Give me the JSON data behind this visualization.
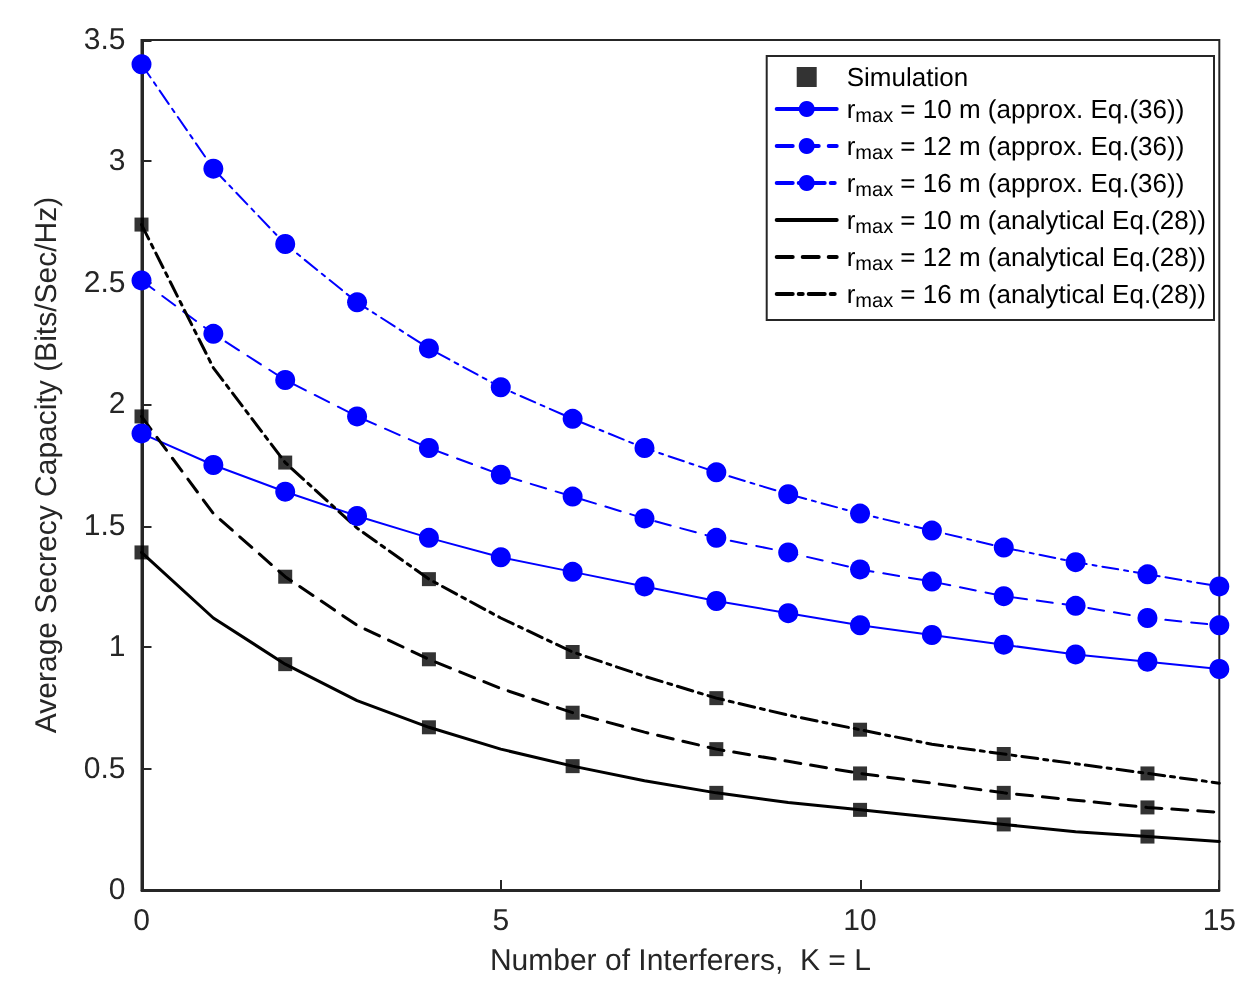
{
  "chart_data": {
    "type": "line",
    "xlabel": "Number of Interferers,  K = L",
    "ylabel": "Average Secrecy Capacity (Bits/Sec/Hz)",
    "x": [
      0,
      1,
      2,
      3,
      4,
      5,
      6,
      7,
      8,
      9,
      10,
      11,
      12,
      13,
      14,
      15
    ],
    "xlim": [
      0,
      15
    ],
    "xticks": [
      0,
      5,
      10,
      15
    ],
    "ylim": [
      0,
      3.5
    ],
    "yticks": [
      0,
      0.5,
      1,
      1.5,
      2,
      2.5,
      3,
      3.5
    ],
    "grid": false,
    "legend": "top right",
    "series": [
      {
        "name": "Simulation",
        "type": "scatter",
        "marker": "square",
        "color": "#000000",
        "x": [
          0,
          2,
          4,
          6,
          8,
          10,
          12,
          14,
          0,
          2,
          4,
          6,
          8,
          10,
          12,
          14,
          0,
          2,
          4,
          6,
          8,
          10,
          12,
          14
        ],
        "values": [
          1.39,
          0.93,
          0.67,
          0.51,
          0.4,
          0.33,
          0.27,
          0.22,
          1.95,
          1.29,
          0.95,
          0.73,
          0.58,
          0.48,
          0.4,
          0.34,
          2.74,
          1.76,
          1.28,
          0.98,
          0.79,
          0.66,
          0.56,
          0.48
        ]
      },
      {
        "name": "r$_{max}$ = 10 m (approx. Eq.(36))",
        "color": "#0000ff",
        "marker": "circle",
        "line_style": "solid",
        "values": [
          1.88,
          1.75,
          1.64,
          1.54,
          1.45,
          1.37,
          1.31,
          1.25,
          1.19,
          1.14,
          1.09,
          1.05,
          1.01,
          0.97,
          0.94,
          0.91
        ]
      },
      {
        "name": "r$_{max}$ = 12 m (approx. Eq.(36))",
        "color": "#0000ff",
        "marker": "circle",
        "line_style": "dashed",
        "values": [
          2.51,
          2.29,
          2.1,
          1.95,
          1.82,
          1.71,
          1.62,
          1.53,
          1.45,
          1.39,
          1.32,
          1.27,
          1.21,
          1.17,
          1.12,
          1.09
        ]
      },
      {
        "name": "r$_{max}$ = 16 m (approx. Eq.(36))",
        "color": "#0000ff",
        "marker": "circle",
        "line_style": "dashdot",
        "values": [
          3.4,
          2.97,
          2.66,
          2.42,
          2.23,
          2.07,
          1.94,
          1.82,
          1.72,
          1.63,
          1.55,
          1.48,
          1.41,
          1.35,
          1.3,
          1.25
        ]
      },
      {
        "name": "r$_{max}$ = 10 m (analytical Eq.(28))",
        "color": "#000000",
        "marker": "none",
        "line_style": "solid",
        "values": [
          1.39,
          1.12,
          0.93,
          0.78,
          0.67,
          0.58,
          0.51,
          0.45,
          0.4,
          0.36,
          0.33,
          0.3,
          0.27,
          0.24,
          0.22,
          0.2
        ]
      },
      {
        "name": "r$_{max}$ = 12 m (analytical Eq.(28))",
        "color": "#000000",
        "marker": "none",
        "line_style": "dashed",
        "values": [
          1.95,
          1.55,
          1.29,
          1.09,
          0.95,
          0.83,
          0.73,
          0.65,
          0.58,
          0.53,
          0.48,
          0.44,
          0.4,
          0.37,
          0.34,
          0.32
        ]
      },
      {
        "name": "r$_{max}$ = 16 m (analytical Eq.(28))",
        "color": "#000000",
        "marker": "none",
        "line_style": "dashdot",
        "values": [
          2.74,
          2.15,
          1.76,
          1.49,
          1.28,
          1.12,
          0.98,
          0.88,
          0.79,
          0.72,
          0.66,
          0.6,
          0.56,
          0.52,
          0.48,
          0.44
        ]
      }
    ]
  }
}
